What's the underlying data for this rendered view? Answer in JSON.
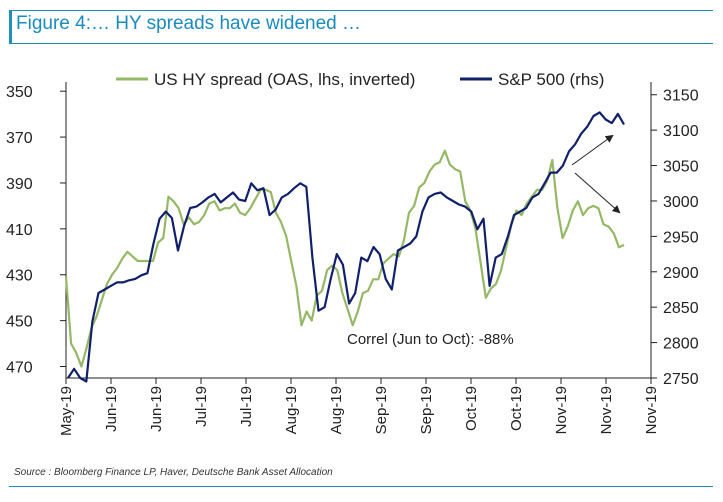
{
  "title": "Figure 4:… HY spreads have widened …",
  "source": "Source : Bloomberg Finance LP, Haver, Deutsche Bank Asset Allocation",
  "chart_data": {
    "type": "line",
    "title": "Figure 4:… HY spreads have widened …",
    "annotation": "Correl (Jun to Oct): -88%",
    "x_ticks": [
      "May-19",
      "Jun-19",
      "Jun-19",
      "Jul-19",
      "Jul-19",
      "Aug-19",
      "Aug-19",
      "Sep-19",
      "Sep-19",
      "Oct-19",
      "Oct-19",
      "Nov-19",
      "Nov-19",
      "Nov-19"
    ],
    "left_axis": {
      "label": "US HY spread (OAS, lhs, inverted)",
      "ticks": [
        350,
        370,
        390,
        410,
        430,
        450,
        470
      ],
      "range": [
        346,
        475
      ],
      "inverted": true
    },
    "right_axis": {
      "label": "S&P 500 (rhs)",
      "ticks": [
        3150,
        3100,
        3050,
        3000,
        2950,
        2900,
        2850,
        2800,
        2750
      ],
      "range": [
        2750,
        3168
      ]
    },
    "colors": {
      "hy": "#95b866",
      "spx": "#10206b",
      "axis": "#222222",
      "title": "#1a8bbd"
    },
    "series": [
      {
        "name": "US HY spread (OAS, lhs, inverted)",
        "axis": "left",
        "values": [
          431,
          460,
          464,
          470,
          462,
          453,
          448,
          441,
          434,
          430,
          427,
          423,
          420,
          422,
          424,
          424,
          424,
          424,
          416,
          414,
          396,
          398,
          401,
          408,
          405,
          408,
          407,
          404,
          399,
          398,
          402,
          401,
          401,
          399,
          403,
          404,
          401,
          397,
          393,
          393,
          394,
          403,
          407,
          413,
          424,
          435,
          452,
          446,
          450,
          439,
          437,
          428,
          426,
          428,
          438,
          445,
          452,
          446,
          438,
          437,
          432,
          432,
          425,
          423,
          421,
          422,
          415,
          403,
          400,
          392,
          390,
          385,
          382,
          381,
          376,
          382,
          384,
          385,
          398,
          402,
          410,
          425,
          440,
          436,
          434,
          428,
          418,
          408,
          402,
          404,
          399,
          396,
          393,
          393,
          389,
          380,
          401,
          414,
          409,
          402,
          398,
          404,
          401,
          400,
          401,
          408,
          409,
          412,
          418,
          417
        ],
        "x_start": "May-19 (start)",
        "x_end": "late Nov-19"
      },
      {
        "name": "S&P 500 (rhs)",
        "axis": "right",
        "values": [
          2750,
          2763,
          2750,
          2745,
          2830,
          2870,
          2875,
          2880,
          2885,
          2885,
          2888,
          2890,
          2895,
          2898,
          2940,
          2975,
          2985,
          2976,
          2930,
          2965,
          2990,
          2992,
          2998,
          3005,
          3010,
          2998,
          3005,
          3012,
          3002,
          3000,
          3025,
          3015,
          3018,
          2980,
          2988,
          3005,
          3010,
          3018,
          3025,
          3020,
          2920,
          2845,
          2850,
          2890,
          2925,
          2910,
          2855,
          2870,
          2920,
          2915,
          2935,
          2925,
          2890,
          2875,
          2930,
          2935,
          2940,
          2950,
          2985,
          3005,
          3010,
          3012,
          3005,
          3000,
          2995,
          2992,
          2985,
          2960,
          2975,
          2880,
          2920,
          2925,
          2950,
          2980,
          2985,
          2990,
          3005,
          3010,
          3025,
          3040,
          3040,
          3050,
          3070,
          3080,
          3095,
          3105,
          3120,
          3125,
          3115,
          3110,
          3123,
          3108
        ]
      }
    ],
    "arrows": [
      "up-right toward S&P 500",
      "down-right toward US HY spread"
    ]
  }
}
